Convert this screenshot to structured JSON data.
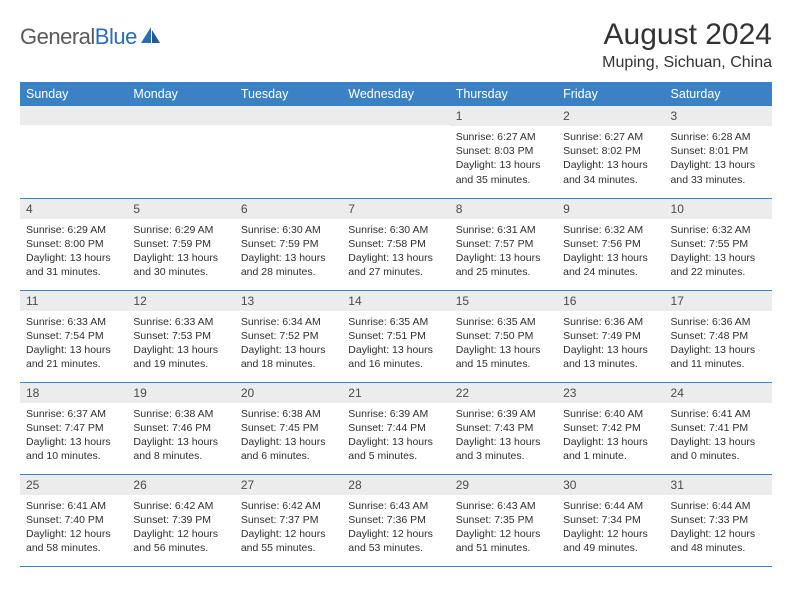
{
  "brand": {
    "general": "General",
    "blue": "Blue"
  },
  "title": "August 2024",
  "location": "Muping, Sichuan, China",
  "days_of_week": [
    "Sunday",
    "Monday",
    "Tuesday",
    "Wednesday",
    "Thursday",
    "Friday",
    "Saturday"
  ],
  "colors": {
    "header_bg": "#3a82c4",
    "header_text": "#ffffff",
    "daynum_bg": "#ececec",
    "border": "#3a82c4",
    "text": "#2f2f2f",
    "logo_gray": "#5a5a5a",
    "logo_blue": "#2a6db5"
  },
  "weeks": [
    [
      {
        "n": "",
        "sr": "",
        "ss": "",
        "dl": ""
      },
      {
        "n": "",
        "sr": "",
        "ss": "",
        "dl": ""
      },
      {
        "n": "",
        "sr": "",
        "ss": "",
        "dl": ""
      },
      {
        "n": "",
        "sr": "",
        "ss": "",
        "dl": ""
      },
      {
        "n": "1",
        "sr": "Sunrise: 6:27 AM",
        "ss": "Sunset: 8:03 PM",
        "dl": "Daylight: 13 hours and 35 minutes."
      },
      {
        "n": "2",
        "sr": "Sunrise: 6:27 AM",
        "ss": "Sunset: 8:02 PM",
        "dl": "Daylight: 13 hours and 34 minutes."
      },
      {
        "n": "3",
        "sr": "Sunrise: 6:28 AM",
        "ss": "Sunset: 8:01 PM",
        "dl": "Daylight: 13 hours and 33 minutes."
      }
    ],
    [
      {
        "n": "4",
        "sr": "Sunrise: 6:29 AM",
        "ss": "Sunset: 8:00 PM",
        "dl": "Daylight: 13 hours and 31 minutes."
      },
      {
        "n": "5",
        "sr": "Sunrise: 6:29 AM",
        "ss": "Sunset: 7:59 PM",
        "dl": "Daylight: 13 hours and 30 minutes."
      },
      {
        "n": "6",
        "sr": "Sunrise: 6:30 AM",
        "ss": "Sunset: 7:59 PM",
        "dl": "Daylight: 13 hours and 28 minutes."
      },
      {
        "n": "7",
        "sr": "Sunrise: 6:30 AM",
        "ss": "Sunset: 7:58 PM",
        "dl": "Daylight: 13 hours and 27 minutes."
      },
      {
        "n": "8",
        "sr": "Sunrise: 6:31 AM",
        "ss": "Sunset: 7:57 PM",
        "dl": "Daylight: 13 hours and 25 minutes."
      },
      {
        "n": "9",
        "sr": "Sunrise: 6:32 AM",
        "ss": "Sunset: 7:56 PM",
        "dl": "Daylight: 13 hours and 24 minutes."
      },
      {
        "n": "10",
        "sr": "Sunrise: 6:32 AM",
        "ss": "Sunset: 7:55 PM",
        "dl": "Daylight: 13 hours and 22 minutes."
      }
    ],
    [
      {
        "n": "11",
        "sr": "Sunrise: 6:33 AM",
        "ss": "Sunset: 7:54 PM",
        "dl": "Daylight: 13 hours and 21 minutes."
      },
      {
        "n": "12",
        "sr": "Sunrise: 6:33 AM",
        "ss": "Sunset: 7:53 PM",
        "dl": "Daylight: 13 hours and 19 minutes."
      },
      {
        "n": "13",
        "sr": "Sunrise: 6:34 AM",
        "ss": "Sunset: 7:52 PM",
        "dl": "Daylight: 13 hours and 18 minutes."
      },
      {
        "n": "14",
        "sr": "Sunrise: 6:35 AM",
        "ss": "Sunset: 7:51 PM",
        "dl": "Daylight: 13 hours and 16 minutes."
      },
      {
        "n": "15",
        "sr": "Sunrise: 6:35 AM",
        "ss": "Sunset: 7:50 PM",
        "dl": "Daylight: 13 hours and 15 minutes."
      },
      {
        "n": "16",
        "sr": "Sunrise: 6:36 AM",
        "ss": "Sunset: 7:49 PM",
        "dl": "Daylight: 13 hours and 13 minutes."
      },
      {
        "n": "17",
        "sr": "Sunrise: 6:36 AM",
        "ss": "Sunset: 7:48 PM",
        "dl": "Daylight: 13 hours and 11 minutes."
      }
    ],
    [
      {
        "n": "18",
        "sr": "Sunrise: 6:37 AM",
        "ss": "Sunset: 7:47 PM",
        "dl": "Daylight: 13 hours and 10 minutes."
      },
      {
        "n": "19",
        "sr": "Sunrise: 6:38 AM",
        "ss": "Sunset: 7:46 PM",
        "dl": "Daylight: 13 hours and 8 minutes."
      },
      {
        "n": "20",
        "sr": "Sunrise: 6:38 AM",
        "ss": "Sunset: 7:45 PM",
        "dl": "Daylight: 13 hours and 6 minutes."
      },
      {
        "n": "21",
        "sr": "Sunrise: 6:39 AM",
        "ss": "Sunset: 7:44 PM",
        "dl": "Daylight: 13 hours and 5 minutes."
      },
      {
        "n": "22",
        "sr": "Sunrise: 6:39 AM",
        "ss": "Sunset: 7:43 PM",
        "dl": "Daylight: 13 hours and 3 minutes."
      },
      {
        "n": "23",
        "sr": "Sunrise: 6:40 AM",
        "ss": "Sunset: 7:42 PM",
        "dl": "Daylight: 13 hours and 1 minute."
      },
      {
        "n": "24",
        "sr": "Sunrise: 6:41 AM",
        "ss": "Sunset: 7:41 PM",
        "dl": "Daylight: 13 hours and 0 minutes."
      }
    ],
    [
      {
        "n": "25",
        "sr": "Sunrise: 6:41 AM",
        "ss": "Sunset: 7:40 PM",
        "dl": "Daylight: 12 hours and 58 minutes."
      },
      {
        "n": "26",
        "sr": "Sunrise: 6:42 AM",
        "ss": "Sunset: 7:39 PM",
        "dl": "Daylight: 12 hours and 56 minutes."
      },
      {
        "n": "27",
        "sr": "Sunrise: 6:42 AM",
        "ss": "Sunset: 7:37 PM",
        "dl": "Daylight: 12 hours and 55 minutes."
      },
      {
        "n": "28",
        "sr": "Sunrise: 6:43 AM",
        "ss": "Sunset: 7:36 PM",
        "dl": "Daylight: 12 hours and 53 minutes."
      },
      {
        "n": "29",
        "sr": "Sunrise: 6:43 AM",
        "ss": "Sunset: 7:35 PM",
        "dl": "Daylight: 12 hours and 51 minutes."
      },
      {
        "n": "30",
        "sr": "Sunrise: 6:44 AM",
        "ss": "Sunset: 7:34 PM",
        "dl": "Daylight: 12 hours and 49 minutes."
      },
      {
        "n": "31",
        "sr": "Sunrise: 6:44 AM",
        "ss": "Sunset: 7:33 PM",
        "dl": "Daylight: 12 hours and 48 minutes."
      }
    ]
  ]
}
